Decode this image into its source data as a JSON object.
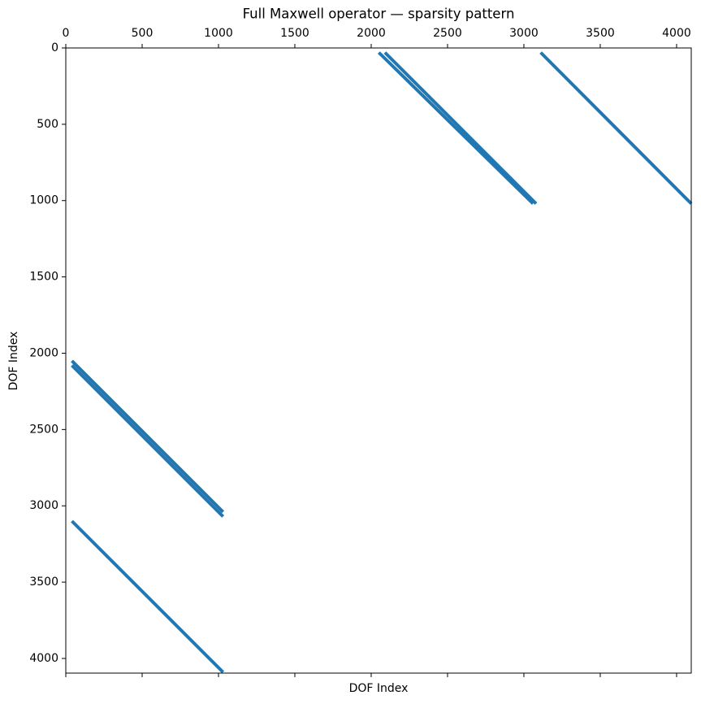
{
  "chart_data": {
    "type": "spy",
    "title": "Full Maxwell operator — sparsity pattern",
    "xlabel": "DOF Index",
    "ylabel": "DOF Index",
    "color": "#1f77b4",
    "xlim": [
      0,
      4096
    ],
    "ylim": [
      4096,
      0
    ],
    "xticks": [
      0,
      500,
      1000,
      1500,
      2000,
      2500,
      3000,
      3500,
      4000
    ],
    "yticks": [
      0,
      500,
      1000,
      1500,
      2000,
      2500,
      3000,
      3500,
      4000
    ],
    "segments": [
      {
        "x": [
          2050,
          3060
        ],
        "y": [
          30,
          1020
        ]
      },
      {
        "x": [
          2090,
          3080
        ],
        "y": [
          30,
          1020
        ]
      },
      {
        "x": [
          3110,
          4096
        ],
        "y": [
          30,
          1020
        ]
      },
      {
        "x": [
          40,
          1030
        ],
        "y": [
          2050,
          3040
        ]
      },
      {
        "x": [
          40,
          1030
        ],
        "y": [
          2080,
          3070
        ]
      },
      {
        "x": [
          40,
          1030
        ],
        "y": [
          3100,
          4090
        ]
      }
    ]
  }
}
